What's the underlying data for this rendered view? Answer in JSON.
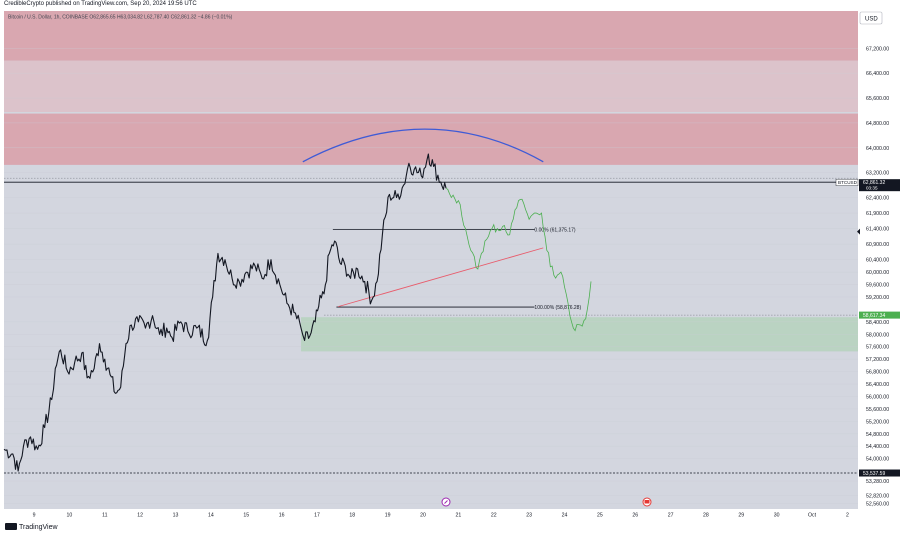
{
  "header": {
    "publisher": "CredibleCrypto published on TradingView.com, Sep 20, 2024 19:56 UTC"
  },
  "footer": {
    "brand": "TradingView"
  },
  "colors": {
    "background": "#d1d4dc",
    "plot_bg": "#d3d6df",
    "supply_zone": "#d9a7b0",
    "supply_zone_light": "#dcc3cb",
    "demand_zone": "#b7d3bf",
    "candles": "#131722",
    "projection": "#4caf50",
    "arc": "#3f5bd6",
    "trendline": "#e85c6c"
  },
  "chart_data": {
    "type": "candlestick",
    "legend": "Bitcoin / U.S. Dollar, 1h, COINBASE  O62,865.65  H63,034.82  L62,787.40  C62,861.32  −4.86 (−0.01%)",
    "currency": "USD",
    "x_ticks": [
      "9",
      "10",
      "11",
      "12",
      "13",
      "14",
      "15",
      "16",
      "17",
      "18",
      "19",
      "20",
      "21",
      "22",
      "23",
      "24",
      "25",
      "26",
      "27",
      "28",
      "29",
      "30",
      "Oct",
      "2"
    ],
    "x_range": [
      8.15,
      32.3
    ],
    "y_ticks": [
      "67,200.00",
      "66,400.00",
      "65,600.00",
      "64,800.00",
      "64,000.00",
      "63,200.00",
      "62,400.00",
      "61,900.00",
      "61,400.00",
      "60,900.00",
      "60,400.00",
      "60,000.00",
      "59,600.00",
      "59,200.00",
      "58,400.00",
      "58,000.00",
      "57,600.00",
      "57,200.00",
      "56,800.00",
      "56,400.00",
      "56,000.00",
      "55,600.00",
      "55,200.00",
      "54,800.00",
      "54,400.00",
      "54,000.00",
      "53,280.00",
      "52,820.00",
      "52,560.00"
    ],
    "last_price": {
      "label": "BTCUSD",
      "value": "62,861.32",
      "countdown": "03:35"
    },
    "price_marker": "58,617.34",
    "low_marker": "53,537.59",
    "fib_levels": [
      {
        "label": "0.00% (61,375.17)"
      },
      {
        "label": "100.00% (58,876.28)"
      }
    ],
    "zones": [
      {
        "kind": "supply",
        "from": 66800,
        "to": 68400
      },
      {
        "kind": "supply_light",
        "from": 65150,
        "to": 66800
      },
      {
        "kind": "supply",
        "from": 63450,
        "to": 65100
      },
      {
        "kind": "demand",
        "from": 57450,
        "to": 58550
      }
    ],
    "candles_path": [
      [
        8.15,
        54300
      ],
      [
        8.4,
        54150
      ],
      [
        8.55,
        53600
      ],
      [
        8.7,
        54400
      ],
      [
        8.9,
        54700
      ],
      [
        9.1,
        54300
      ],
      [
        9.3,
        55000
      ],
      [
        9.5,
        55900
      ],
      [
        9.6,
        56900
      ],
      [
        9.75,
        57500
      ],
      [
        9.95,
        56800
      ],
      [
        10.15,
        57100
      ],
      [
        10.35,
        57400
      ],
      [
        10.5,
        56600
      ],
      [
        10.7,
        56900
      ],
      [
        10.85,
        57700
      ],
      [
        11.0,
        57200
      ],
      [
        11.15,
        56700
      ],
      [
        11.3,
        56100
      ],
      [
        11.45,
        56300
      ],
      [
        11.6,
        57700
      ],
      [
        11.75,
        58300
      ],
      [
        11.95,
        58400
      ],
      [
        12.15,
        58200
      ],
      [
        12.35,
        58600
      ],
      [
        12.55,
        58000
      ],
      [
        12.75,
        58200
      ],
      [
        12.9,
        57900
      ],
      [
        13.15,
        58400
      ],
      [
        13.35,
        58100
      ],
      [
        13.6,
        58200
      ],
      [
        13.9,
        57800
      ],
      [
        14.05,
        59200
      ],
      [
        14.2,
        60600
      ],
      [
        14.4,
        60400
      ],
      [
        14.6,
        59800
      ],
      [
        14.8,
        59700
      ],
      [
        15.0,
        60000
      ],
      [
        15.25,
        60200
      ],
      [
        15.45,
        59800
      ],
      [
        15.7,
        60400
      ],
      [
        15.95,
        59600
      ],
      [
        16.15,
        59000
      ],
      [
        16.35,
        58700
      ],
      [
        16.55,
        58200
      ],
      [
        16.65,
        57800
      ],
      [
        16.8,
        57950
      ],
      [
        16.95,
        58400
      ],
      [
        17.05,
        58900
      ],
      [
        17.2,
        59300
      ],
      [
        17.35,
        60600
      ],
      [
        17.5,
        61000
      ],
      [
        17.65,
        60300
      ],
      [
        17.8,
        60200
      ],
      [
        17.95,
        59800
      ],
      [
        18.15,
        60100
      ],
      [
        18.35,
        59700
      ],
      [
        18.55,
        59100
      ],
      [
        18.7,
        59700
      ],
      [
        18.85,
        61200
      ],
      [
        19.05,
        62500
      ],
      [
        19.25,
        62400
      ],
      [
        19.45,
        62800
      ],
      [
        19.6,
        63500
      ],
      [
        19.75,
        63300
      ],
      [
        19.95,
        63100
      ],
      [
        20.15,
        63800
      ],
      [
        20.3,
        63400
      ],
      [
        20.5,
        62900
      ],
      [
        20.65,
        62700
      ]
    ],
    "projection_path": [
      [
        20.65,
        62700
      ],
      [
        20.8,
        62400
      ],
      [
        21.0,
        62300
      ],
      [
        21.2,
        61400
      ],
      [
        21.35,
        60700
      ],
      [
        21.55,
        60100
      ],
      [
        21.75,
        61000
      ],
      [
        21.95,
        61400
      ],
      [
        22.1,
        61400
      ],
      [
        22.3,
        61500
      ],
      [
        22.45,
        61200
      ],
      [
        22.55,
        61700
      ],
      [
        22.7,
        62300
      ],
      [
        22.85,
        62200
      ],
      [
        23.0,
        61700
      ],
      [
        23.15,
        61900
      ],
      [
        23.35,
        61900
      ],
      [
        23.5,
        60700
      ],
      [
        23.7,
        59900
      ],
      [
        23.9,
        60000
      ],
      [
        24.1,
        59000
      ],
      [
        24.25,
        58200
      ],
      [
        24.45,
        58300
      ],
      [
        24.6,
        58500
      ],
      [
        24.75,
        59700
      ]
    ],
    "arc": {
      "from": [
        16.6,
        63550
      ],
      "peak": [
        20.05,
        64600
      ],
      "to": [
        23.4,
        63550
      ]
    },
    "trendline": {
      "from": [
        17.6,
        58890
      ],
      "to": [
        23.4,
        60780
      ]
    }
  }
}
